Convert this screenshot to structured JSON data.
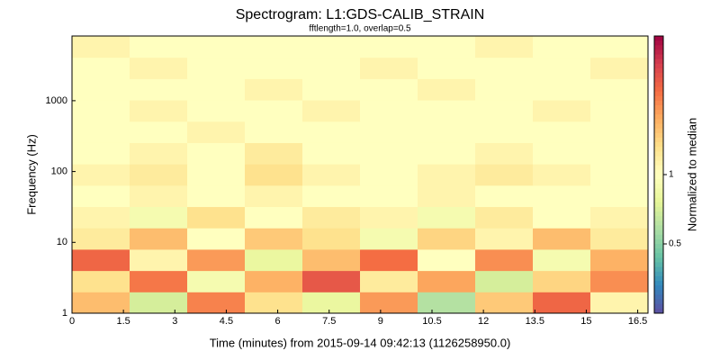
{
  "chart_data": {
    "type": "heatmap",
    "title": "Spectrogram: L1:GDS-CALIB_STRAIN",
    "subtitle": "fftlength=1.0, overlap=0.5",
    "x_label": "Time (minutes) from 2015-09-14 09:42:13 (1126258950.0)",
    "y_label": "Frequency (Hz)",
    "colorbar_label": "Normalized to median",
    "colormap": "Spectral_r",
    "y_log": true,
    "clim_log": true,
    "xlim": [
      0,
      16.8
    ],
    "ylim": [
      1,
      8192
    ],
    "clim": [
      0.25,
      4
    ],
    "xticks": [
      0,
      1.5,
      3,
      4.5,
      6,
      7.5,
      9,
      10.5,
      12,
      13.5,
      15,
      16.5
    ],
    "yticks": [
      1,
      10,
      100,
      1000
    ],
    "cticks": [
      0.5,
      1
    ],
    "x_edges": [
      0,
      1.68,
      3.36,
      5.04,
      6.72,
      8.4,
      10.08,
      11.76,
      13.44,
      15.12,
      16.8
    ],
    "y_edges": [
      1,
      2,
      4,
      8,
      16,
      32,
      64,
      128,
      256,
      512,
      1024,
      2048,
      4096,
      8192
    ],
    "z": [
      [
        1.6,
        0.7,
        2.1,
        1.3,
        0.8,
        1.9,
        0.6,
        1.5,
        2.4,
        1.1
      ],
      [
        1.3,
        2.2,
        0.9,
        1.7,
        2.6,
        1.2,
        1.8,
        0.7,
        1.4,
        2.0
      ],
      [
        2.4,
        1.1,
        1.9,
        0.8,
        1.6,
        2.3,
        1.0,
        2.0,
        0.9,
        1.7
      ],
      [
        1.2,
        1.6,
        1.0,
        1.5,
        1.3,
        0.9,
        1.4,
        1.1,
        1.6,
        1.2
      ],
      [
        1.1,
        0.9,
        1.3,
        1.0,
        1.2,
        1.1,
        0.9,
        1.2,
        1.0,
        1.1
      ],
      [
        1.0,
        1.1,
        1.0,
        1.1,
        1.0,
        1.0,
        1.1,
        1.0,
        1.0,
        1.0
      ],
      [
        1.1,
        1.2,
        1.0,
        1.3,
        1.1,
        1.0,
        1.1,
        1.2,
        1.1,
        1.0
      ],
      [
        1.0,
        1.1,
        1.0,
        1.2,
        1.0,
        1.0,
        1.0,
        1.1,
        1.0,
        1.0
      ],
      [
        1.0,
        1.0,
        1.1,
        1.0,
        1.0,
        1.0,
        1.0,
        1.0,
        1.0,
        1.0
      ],
      [
        1.0,
        1.1,
        1.0,
        1.0,
        1.1,
        1.0,
        1.0,
        1.0,
        1.1,
        1.0
      ],
      [
        1.0,
        1.0,
        1.0,
        1.1,
        1.0,
        1.0,
        1.1,
        1.0,
        1.0,
        1.0
      ],
      [
        1.0,
        1.1,
        1.0,
        1.0,
        1.0,
        1.1,
        1.0,
        1.0,
        1.0,
        1.1
      ],
      [
        1.1,
        1.0,
        1.0,
        1.0,
        1.0,
        1.0,
        1.0,
        1.1,
        1.0,
        1.0
      ]
    ]
  }
}
